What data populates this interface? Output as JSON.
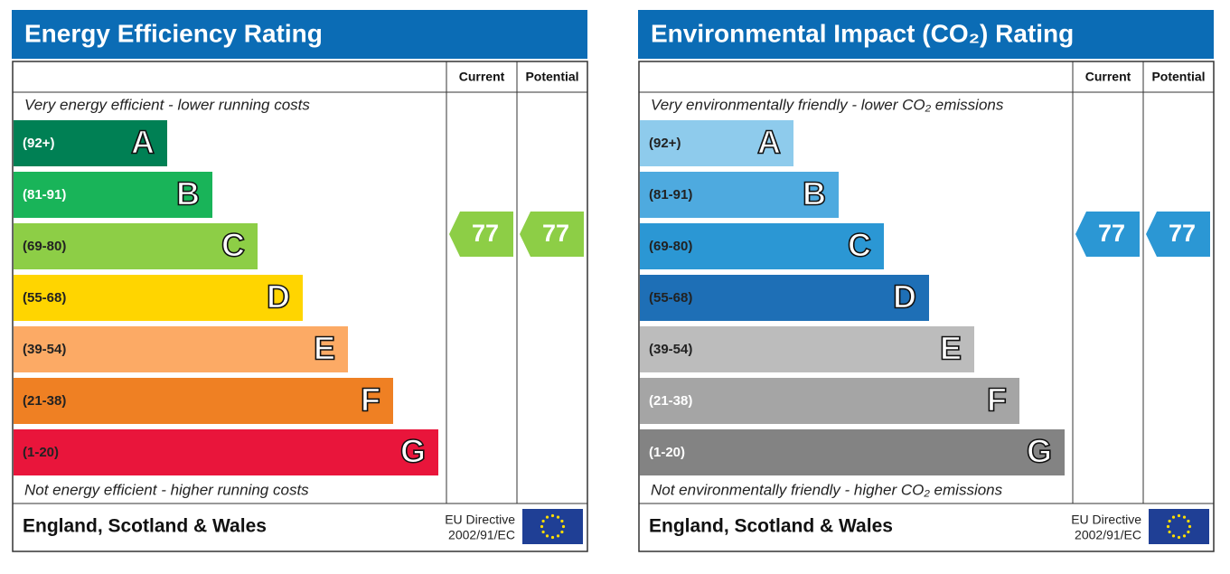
{
  "panels": [
    {
      "title": "Energy Efficiency Rating",
      "current_header": "Current",
      "potential_header": "Potential",
      "top_text": "Very energy efficient - lower running costs",
      "bottom_text": "Not energy efficient - higher running costs",
      "bands": [
        {
          "range": "(92+)",
          "letter": "A",
          "color": "#008054"
        },
        {
          "range": "(81-91)",
          "letter": "B",
          "color": "#19b459"
        },
        {
          "range": "(69-80)",
          "letter": "C",
          "color": "#8dce46"
        },
        {
          "range": "(55-68)",
          "letter": "D",
          "color": "#ffd500"
        },
        {
          "range": "(39-54)",
          "letter": "E",
          "color": "#fcaa65"
        },
        {
          "range": "(21-38)",
          "letter": "F",
          "color": "#ef8023"
        },
        {
          "range": "(1-20)",
          "letter": "G",
          "color": "#e9153b"
        }
      ],
      "current": "77",
      "potential": "77",
      "footer": "England, Scotland & Wales",
      "directive_line1": "EU Directive",
      "directive_line2": "2002/91/EC"
    },
    {
      "title": "Environmental Impact (CO₂) Rating",
      "current_header": "Current",
      "potential_header": "Potential",
      "top_text": "Very environmentally friendly - lower CO₂ emissions",
      "bottom_text": "Not environmentally friendly - higher CO₂ emissions",
      "bands": [
        {
          "range": "(92+)",
          "letter": "A",
          "color": "#8ecbec"
        },
        {
          "range": "(81-91)",
          "letter": "B",
          "color": "#4eaadf"
        },
        {
          "range": "(69-80)",
          "letter": "C",
          "color": "#2b97d4"
        },
        {
          "range": "(55-68)",
          "letter": "D",
          "color": "#1e6fb6"
        },
        {
          "range": "(39-54)",
          "letter": "E",
          "color": "#bcbcbc"
        },
        {
          "range": "(21-38)",
          "letter": "F",
          "color": "#a5a5a5"
        },
        {
          "range": "(1-20)",
          "letter": "G",
          "color": "#838383"
        }
      ],
      "current": "77",
      "potential": "77",
      "footer": "England, Scotland & Wales",
      "directive_line1": "EU Directive",
      "directive_line2": "2002/91/EC"
    }
  ]
}
